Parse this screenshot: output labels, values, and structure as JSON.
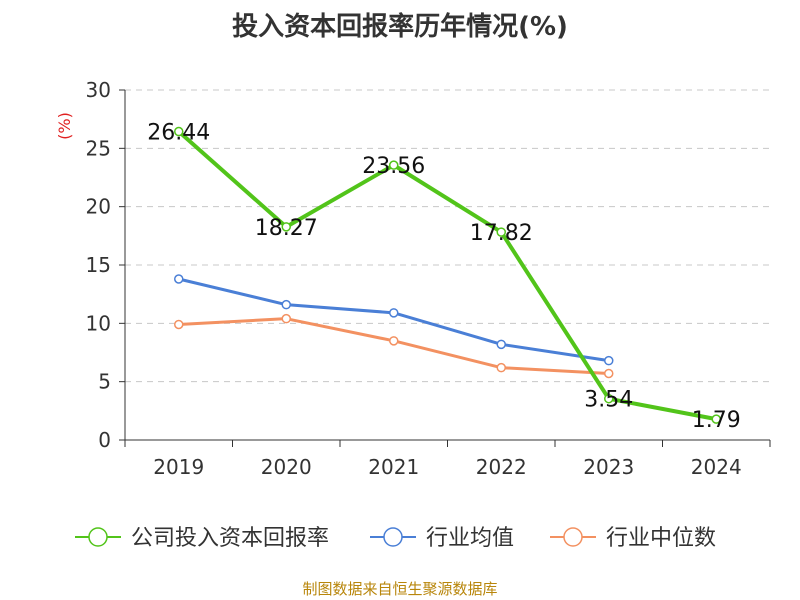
{
  "title": "投入资本回报率历年情况(%)",
  "source": "制图数据来自恒生聚源数据库",
  "colors": {
    "company": "#52c41a",
    "industry_avg": "#4a7fd6",
    "industry_median": "#f39161"
  },
  "chart_data": {
    "type": "line",
    "title": "投入资本回报率历年情况(%)",
    "xlabel": "",
    "ylabel": "(%)",
    "ylim": [
      0,
      30
    ],
    "yticks": [
      0,
      5,
      10,
      15,
      20,
      25,
      30
    ],
    "categories": [
      "2019",
      "2020",
      "2021",
      "2022",
      "2023",
      "2024"
    ],
    "grid": true,
    "legend": "bottom",
    "series": [
      {
        "name": "公司投入资本回报率",
        "values": [
          26.44,
          18.27,
          23.56,
          17.82,
          3.54,
          1.79
        ],
        "labels": [
          "26.44",
          "18.27",
          "23.56",
          "17.82",
          "3.54",
          "1.79"
        ]
      },
      {
        "name": "行业均值",
        "values": [
          13.8,
          11.6,
          10.9,
          8.2,
          6.8,
          null
        ]
      },
      {
        "name": "行业中位数",
        "values": [
          9.9,
          10.4,
          8.5,
          6.2,
          5.7,
          null
        ]
      }
    ]
  }
}
